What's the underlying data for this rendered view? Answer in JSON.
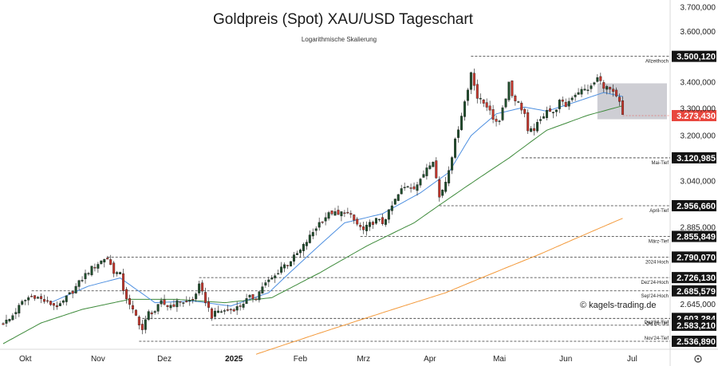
{
  "chart_data": {
    "type": "candlestick",
    "title": "Goldpreis (Spot) XAU/USD Tageschart",
    "subtitle": "Logarithmische Skalierung",
    "y_scale": "log",
    "ylim": [
      2520,
      3720
    ],
    "y_ticks": [
      {
        "value": 3700,
        "label": "3.700,000"
      },
      {
        "value": 3600,
        "label": "3.600,000"
      },
      {
        "value": 3400,
        "label": "3.400,000"
      },
      {
        "value": 3300,
        "label": "3.300,000"
      },
      {
        "value": 3200,
        "label": "3.200,000"
      },
      {
        "value": 3040,
        "label": "3.040,000"
      },
      {
        "value": 2885,
        "label": "2.885,000"
      },
      {
        "value": 2645,
        "label": "2.645,000"
      }
    ],
    "x_ticks": [
      {
        "label": "Okt",
        "day": 7,
        "bold": false
      },
      {
        "label": "Nov",
        "day": 30,
        "bold": false
      },
      {
        "label": "Dez",
        "day": 51,
        "bold": false
      },
      {
        "label": "2025",
        "day": 73,
        "bold": true
      },
      {
        "label": "Feb",
        "day": 94,
        "bold": false
      },
      {
        "label": "Mrz",
        "day": 114,
        "bold": false
      },
      {
        "label": "Apr",
        "day": 135,
        "bold": false
      },
      {
        "label": "Mai",
        "day": 157,
        "bold": false
      },
      {
        "label": "Jun",
        "day": 178,
        "bold": false
      },
      {
        "label": "Jul",
        "day": 199,
        "bold": false
      }
    ],
    "levels": [
      {
        "value": 3500.12,
        "label": "3.500,120",
        "note": "Allzeithoch",
        "start_day": 148
      },
      {
        "value": 3120.985,
        "label": "3.120,985",
        "note": "Mai-Tief",
        "start_day": 164
      },
      {
        "value": 2956.66,
        "label": "2.956,660",
        "note": "April-Tief",
        "start_day": 138
      },
      {
        "value": 2855.849,
        "label": "2.855,849",
        "note": "März-Tief",
        "start_day": 113
      },
      {
        "value": 2790.07,
        "label": "2.790,070",
        "note": "2024 Hoch",
        "start_day": 33
      },
      {
        "value": 2726.13,
        "label": "2.726,130",
        "note": "Dez'24-Hoch",
        "start_day": 62
      },
      {
        "value": 2685.579,
        "label": "2.685,579",
        "note": "Sep'24-Hoch",
        "start_day": 9
      },
      {
        "value": 2603.284,
        "label": "2.603,284",
        "note": "Okt'24-Tief",
        "start_day": 44
      },
      {
        "value": 2583.21,
        "label": "2.583,210",
        "note": "Dez'24-Tief",
        "start_day": 66
      },
      {
        "value": 2536.89,
        "label": "2.536,890",
        "note": "Nov'24-Tief",
        "start_day": 43
      }
    ],
    "last_price": {
      "value": 3273.43,
      "label": "3.273,430"
    },
    "range_box": {
      "from_day": 188,
      "to_day": 210,
      "low": 3260,
      "high": 3395
    },
    "key_points": [
      {
        "day": 0,
        "close": 2590
      },
      {
        "day": 2,
        "close": 2600
      },
      {
        "day": 4,
        "close": 2625
      },
      {
        "day": 6,
        "close": 2650
      },
      {
        "day": 8,
        "close": 2665
      },
      {
        "day": 10,
        "close": 2670
      },
      {
        "day": 12,
        "close": 2660
      },
      {
        "day": 14,
        "close": 2650
      },
      {
        "day": 16,
        "close": 2643
      },
      {
        "day": 18,
        "close": 2640
      },
      {
        "day": 20,
        "close": 2665
      },
      {
        "day": 22,
        "close": 2685
      },
      {
        "day": 24,
        "close": 2710
      },
      {
        "day": 26,
        "close": 2735
      },
      {
        "day": 28,
        "close": 2755
      },
      {
        "day": 30,
        "close": 2770
      },
      {
        "day": 32,
        "close": 2785
      },
      {
        "day": 33,
        "close": 2785
      },
      {
        "day": 35,
        "close": 2745
      },
      {
        "day": 37,
        "close": 2735
      },
      {
        "day": 38,
        "close": 2690
      },
      {
        "day": 40,
        "close": 2640
      },
      {
        "day": 42,
        "close": 2610
      },
      {
        "day": 44,
        "close": 2570
      },
      {
        "day": 46,
        "close": 2620
      },
      {
        "day": 48,
        "close": 2625
      },
      {
        "day": 50,
        "close": 2650
      },
      {
        "day": 52,
        "close": 2640
      },
      {
        "day": 54,
        "close": 2645
      },
      {
        "day": 56,
        "close": 2655
      },
      {
        "day": 58,
        "close": 2650
      },
      {
        "day": 60,
        "close": 2660
      },
      {
        "day": 62,
        "close": 2700
      },
      {
        "day": 64,
        "close": 2655
      },
      {
        "day": 66,
        "close": 2610
      },
      {
        "day": 68,
        "close": 2625
      },
      {
        "day": 70,
        "close": 2625
      },
      {
        "day": 72,
        "close": 2630
      },
      {
        "day": 74,
        "close": 2635
      },
      {
        "day": 76,
        "close": 2650
      },
      {
        "day": 78,
        "close": 2665
      },
      {
        "day": 80,
        "close": 2665
      },
      {
        "day": 82,
        "close": 2700
      },
      {
        "day": 84,
        "close": 2715
      },
      {
        "day": 86,
        "close": 2730
      },
      {
        "day": 88,
        "close": 2760
      },
      {
        "day": 90,
        "close": 2770
      },
      {
        "day": 92,
        "close": 2790
      },
      {
        "day": 94,
        "close": 2810
      },
      {
        "day": 96,
        "close": 2840
      },
      {
        "day": 98,
        "close": 2870
      },
      {
        "day": 100,
        "close": 2900
      },
      {
        "day": 102,
        "close": 2920
      },
      {
        "day": 104,
        "close": 2935
      },
      {
        "day": 106,
        "close": 2925
      },
      {
        "day": 108,
        "close": 2940
      },
      {
        "day": 110,
        "close": 2920
      },
      {
        "day": 112,
        "close": 2895
      },
      {
        "day": 114,
        "close": 2875
      },
      {
        "day": 116,
        "close": 2895
      },
      {
        "day": 118,
        "close": 2910
      },
      {
        "day": 120,
        "close": 2900
      },
      {
        "day": 122,
        "close": 2935
      },
      {
        "day": 124,
        "close": 2975
      },
      {
        "day": 126,
        "close": 3010
      },
      {
        "day": 128,
        "close": 3025
      },
      {
        "day": 130,
        "close": 3020
      },
      {
        "day": 132,
        "close": 3040
      },
      {
        "day": 134,
        "close": 3090
      },
      {
        "day": 136,
        "close": 3115
      },
      {
        "day": 137,
        "close": 3050
      },
      {
        "day": 138,
        "close": 2985
      },
      {
        "day": 140,
        "close": 3040
      },
      {
        "day": 142,
        "close": 3130
      },
      {
        "day": 144,
        "close": 3230
      },
      {
        "day": 146,
        "close": 3325
      },
      {
        "day": 147,
        "close": 3370
      },
      {
        "day": 148,
        "close": 3440
      },
      {
        "day": 149,
        "close": 3395
      },
      {
        "day": 150,
        "close": 3340
      },
      {
        "day": 152,
        "close": 3320
      },
      {
        "day": 154,
        "close": 3300
      },
      {
        "day": 155,
        "close": 3250
      },
      {
        "day": 157,
        "close": 3260
      },
      {
        "day": 159,
        "close": 3345
      },
      {
        "day": 160,
        "close": 3400
      },
      {
        "day": 161,
        "close": 3350
      },
      {
        "day": 163,
        "close": 3320
      },
      {
        "day": 165,
        "close": 3280
      },
      {
        "day": 166,
        "close": 3210
      },
      {
        "day": 168,
        "close": 3225
      },
      {
        "day": 170,
        "close": 3255
      },
      {
        "day": 172,
        "close": 3300
      },
      {
        "day": 174,
        "close": 3280
      },
      {
        "day": 176,
        "close": 3325
      },
      {
        "day": 178,
        "close": 3310
      },
      {
        "day": 180,
        "close": 3345
      },
      {
        "day": 182,
        "close": 3365
      },
      {
        "day": 184,
        "close": 3370
      },
      {
        "day": 186,
        "close": 3380
      },
      {
        "day": 188,
        "close": 3415
      },
      {
        "day": 189,
        "close": 3400
      },
      {
        "day": 190,
        "close": 3385
      },
      {
        "day": 192,
        "close": 3370
      },
      {
        "day": 193,
        "close": 3355
      },
      {
        "day": 194,
        "close": 3340
      },
      {
        "day": 195,
        "close": 3320
      },
      {
        "day": 196,
        "close": 3273
      }
    ],
    "sma_blue": [
      {
        "day": 15,
        "value": 2650
      },
      {
        "day": 27,
        "value": 2700
      },
      {
        "day": 37,
        "value": 2725
      },
      {
        "day": 48,
        "value": 2650
      },
      {
        "day": 60,
        "value": 2655
      },
      {
        "day": 72,
        "value": 2640
      },
      {
        "day": 84,
        "value": 2680
      },
      {
        "day": 96,
        "value": 2790
      },
      {
        "day": 108,
        "value": 2900
      },
      {
        "day": 120,
        "value": 2930
      },
      {
        "day": 132,
        "value": 3000
      },
      {
        "day": 141,
        "value": 3070
      },
      {
        "day": 148,
        "value": 3200
      },
      {
        "day": 156,
        "value": 3280
      },
      {
        "day": 165,
        "value": 3305
      },
      {
        "day": 172,
        "value": 3290
      },
      {
        "day": 180,
        "value": 3320
      },
      {
        "day": 190,
        "value": 3360
      },
      {
        "day": 196,
        "value": 3345
      }
    ],
    "sma_green": [
      {
        "day": 0,
        "value": 2530
      },
      {
        "day": 12,
        "value": 2590
      },
      {
        "day": 25,
        "value": 2630
      },
      {
        "day": 40,
        "value": 2660
      },
      {
        "day": 55,
        "value": 2660
      },
      {
        "day": 70,
        "value": 2650
      },
      {
        "day": 85,
        "value": 2665
      },
      {
        "day": 100,
        "value": 2740
      },
      {
        "day": 115,
        "value": 2825
      },
      {
        "day": 130,
        "value": 2900
      },
      {
        "day": 145,
        "value": 3010
      },
      {
        "day": 160,
        "value": 3120
      },
      {
        "day": 172,
        "value": 3220
      },
      {
        "day": 185,
        "value": 3275
      },
      {
        "day": 196,
        "value": 3310
      }
    ],
    "sma_orange": [
      {
        "day": 80,
        "value": 2500
      },
      {
        "day": 110,
        "value": 2590
      },
      {
        "day": 140,
        "value": 2680
      },
      {
        "day": 170,
        "value": 2800
      },
      {
        "day": 196,
        "value": 2915
      }
    ],
    "copyright": "© kagels-trading.de"
  }
}
